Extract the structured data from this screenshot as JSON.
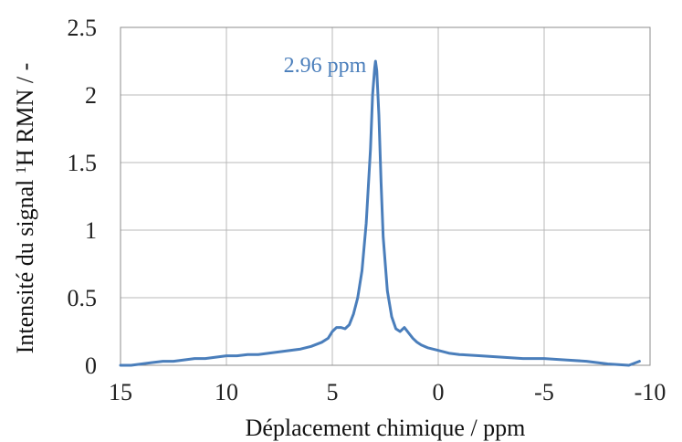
{
  "chart_data": {
    "type": "line",
    "title": "",
    "xlabel": "Déplacement chimique / ppm",
    "ylabel_prefix": "Intensité du signal ",
    "ylabel_sup": "1",
    "ylabel_suffix": "H RMN / -",
    "xlim": [
      15,
      -10
    ],
    "ylim": [
      0,
      2.5
    ],
    "x_reversed": true,
    "grid": true,
    "x_ticks": [
      15,
      10,
      5,
      0,
      -5,
      -10
    ],
    "x_tick_labels": [
      "15",
      "10",
      "5",
      "0",
      "-5",
      "-10"
    ],
    "y_ticks": [
      0,
      0.5,
      1,
      1.5,
      2,
      2.5
    ],
    "y_tick_labels": [
      "0",
      "0.5",
      "1",
      "1.5",
      "2",
      "2.5"
    ],
    "annotations": [
      {
        "text": "2.96 ppm",
        "x": 2.96,
        "y": 2.25
      }
    ],
    "series": [
      {
        "color": "#4a7ebb",
        "x": [
          15.0,
          14.5,
          14.0,
          13.5,
          13.0,
          12.5,
          12.0,
          11.5,
          11.0,
          10.5,
          10.0,
          9.5,
          9.0,
          8.5,
          8.0,
          7.5,
          7.0,
          6.5,
          6.0,
          5.5,
          5.2,
          5.0,
          4.8,
          4.6,
          4.4,
          4.2,
          4.0,
          3.8,
          3.6,
          3.4,
          3.2,
          3.1,
          3.0,
          2.96,
          2.9,
          2.8,
          2.7,
          2.6,
          2.4,
          2.2,
          2.0,
          1.8,
          1.6,
          1.4,
          1.2,
          1.0,
          0.8,
          0.5,
          0.0,
          -0.5,
          -1.0,
          -2.0,
          -3.0,
          -4.0,
          -5.0,
          -6.0,
          -7.0,
          -8.0,
          -9.0,
          -9.5
        ],
        "y": [
          0.0,
          0.0,
          0.01,
          0.02,
          0.03,
          0.03,
          0.04,
          0.05,
          0.05,
          0.06,
          0.07,
          0.07,
          0.08,
          0.08,
          0.09,
          0.1,
          0.11,
          0.12,
          0.14,
          0.17,
          0.2,
          0.25,
          0.28,
          0.28,
          0.27,
          0.3,
          0.38,
          0.5,
          0.7,
          1.05,
          1.6,
          2.0,
          2.2,
          2.25,
          2.18,
          1.85,
          1.35,
          0.95,
          0.55,
          0.36,
          0.27,
          0.25,
          0.28,
          0.24,
          0.2,
          0.17,
          0.15,
          0.13,
          0.11,
          0.09,
          0.08,
          0.07,
          0.06,
          0.05,
          0.05,
          0.04,
          0.03,
          0.01,
          0.0,
          0.03
        ]
      }
    ]
  }
}
